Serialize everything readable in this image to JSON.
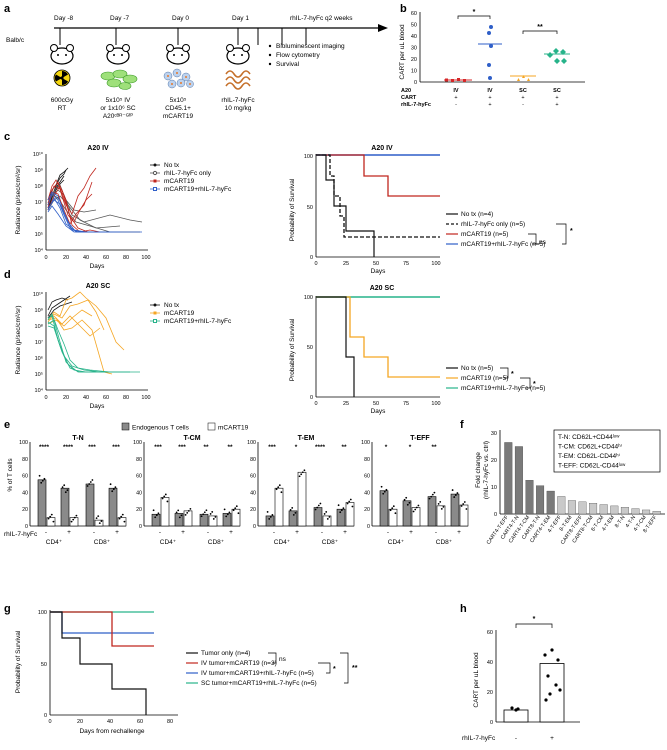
{
  "panels": {
    "a": "a",
    "b": "b",
    "c": "c",
    "d": "d",
    "e": "e",
    "f": "f",
    "g": "g",
    "h": "h"
  },
  "a": {
    "days": [
      "Day -8",
      "Day -7",
      "Day 0",
      "Day 1"
    ],
    "regimen": "rhIL-7-hyFc q2 weeks",
    "mouse": "Balb/c",
    "captions": [
      [
        "600cGy",
        "RT"
      ],
      [
        "5x10⁵ IV",
        "or 1x10⁶ SC",
        "A20ᶜᴮᴿ⁻ᴳᶠᴾ"
      ],
      [
        "5x10⁵",
        "CD45.1+",
        "mCART19"
      ],
      [
        "rhIL-7-hyFc",
        "10 mg/kg"
      ]
    ],
    "readouts": [
      "Bioluminescent imaging",
      "Flow cytometry",
      "Survival"
    ]
  },
  "b": {
    "ylabel": "CART per uL blood",
    "yticks": [
      "0",
      "10",
      "20",
      "30",
      "40",
      "50",
      "60"
    ],
    "row_labels": [
      "A20",
      "CART",
      "rhIL-7-hyFc"
    ],
    "columns": [
      {
        "a20": "IV",
        "cart": "+",
        "il7": "-"
      },
      {
        "a20": "IV",
        "cart": "+",
        "il7": "+"
      },
      {
        "a20": "SC",
        "cart": "+",
        "il7": "-"
      },
      {
        "a20": "SC",
        "cart": "+",
        "il7": "+"
      }
    ],
    "sig": [
      "*",
      "**"
    ],
    "colors": {
      "red": "#d62728",
      "blue": "#2f5fc8",
      "orange": "#f5a623",
      "green": "#27b38a"
    }
  },
  "c": {
    "title_left": "A20 IV",
    "title_right": "A20 IV",
    "ylabel_left": "Radiance (p/sec/cm²/sr)",
    "xlabel": "Days",
    "yticks": [
      "10⁴",
      "10⁵",
      "10⁶",
      "10⁷",
      "10⁸",
      "10⁹",
      "10¹⁰"
    ],
    "xticks": [
      "0",
      "20",
      "40",
      "60",
      "80",
      "100"
    ],
    "legend_left": [
      "No tx",
      "rhIL-7-hyFc only",
      "mCART19",
      "mCART19+rhIL-7-hyFc"
    ],
    "ylabel_right": "Probability of Survival",
    "yticks_right": [
      "0",
      "50",
      "100"
    ],
    "xticks_right": [
      "0",
      "25",
      "50",
      "75",
      "100"
    ],
    "legend_right": [
      "No tx (n=4)",
      "rhIL-7-hyFc only (n=5)",
      "mCART19 (n=5)",
      "mCART19+rhIL-7-hyFc (n=5)"
    ],
    "sig": [
      "*",
      "ns"
    ]
  },
  "d": {
    "title_left": "A20 SC",
    "title_right": "A20 SC",
    "legend_left": [
      "No tx",
      "mCART19",
      "mCART19+rhIL-7-hyFc"
    ],
    "legend_right": [
      "No tx (n=5)",
      "mCART19 (n=5)",
      "mCART19+rhIL-7-hyFc (n=5)"
    ],
    "sig": [
      "*",
      "*"
    ]
  },
  "e": {
    "legend": [
      "Endogenous T cells",
      "mCART19"
    ],
    "ylabel": "% of T cells",
    "yticks": [
      "0",
      "20",
      "40",
      "60",
      "80",
      "100"
    ],
    "groups": [
      "T-N",
      "T-CM",
      "T-EM",
      "T-EFF"
    ],
    "subsets": [
      "CD4⁺",
      "CD8⁺"
    ],
    "signs": [
      "-",
      "+",
      "-",
      "+"
    ],
    "row_label": "rhIL-7-hyFc",
    "stars": {
      "T-N": [
        "****",
        "****",
        "***",
        "***"
      ],
      "T-CM": [
        "***",
        "***",
        "**",
        "**"
      ],
      "T-EM": [
        "***",
        "*",
        "****",
        "**"
      ],
      "T-EFF": [
        "*",
        "*",
        "**"
      ]
    }
  },
  "f": {
    "ylabel": "Fold change\n(rhIL-7-hyFc vs. ctrl)",
    "yticks": [
      "0",
      "10",
      "20",
      "30"
    ],
    "legend": [
      "T-N: CD62L+CD44ˡᵒʷ",
      "T-CM: CD62L+CD44ʰⁱ",
      "T-EM: CD62L-CD44ʰⁱ",
      "T-EFF: CD62L-CD44ˡᵒʷ"
    ],
    "categories": [
      "CART4-T-EFF",
      "CART4-T-N",
      "CART4-T-CM",
      "CART8-T-N",
      "CART4-T-EM",
      "4-T-EFF",
      "8-T-EM",
      "CART8-T-EFF",
      "CART8-T-CM",
      "8-T-CM",
      "4-T-EM",
      "8-T-N",
      "4-T-N",
      "4-T-CM",
      "8-T-EFF"
    ],
    "values": [
      26.5,
      25,
      12.5,
      10.5,
      8.5,
      6.5,
      5,
      4.5,
      4,
      3.5,
      3,
      2.5,
      2,
      1.5,
      1
    ]
  },
  "chart_data": [
    {
      "type": "bar",
      "title": "",
      "ylabel": "Fold change (rhIL-7-hyFc vs. ctrl)",
      "ylim": [
        0,
        30
      ],
      "categories": [
        "CART4-T-EFF",
        "CART4-T-N",
        "CART4-T-CM",
        "CART8-T-N",
        "CART4-T-EM",
        "4-T-EFF",
        "8-T-EM",
        "CART8-T-EFF",
        "CART8-T-CM",
        "8-T-CM",
        "4-T-EM",
        "8-T-N",
        "4-T-N",
        "4-T-CM",
        "8-T-EFF"
      ],
      "values": [
        26.5,
        25,
        12.5,
        10.5,
        8.5,
        6.5,
        5,
        4.5,
        4,
        3.5,
        3,
        2.5,
        2,
        1.5,
        1
      ]
    },
    {
      "type": "bar",
      "ylabel": "CART per uL blood",
      "ylim": [
        0,
        60
      ],
      "categories": [
        "-",
        "+"
      ],
      "values": [
        8,
        39
      ]
    }
  ],
  "g": {
    "ylabel": "Probability of Survival",
    "xlabel": "Days from rechallenge",
    "yticks": [
      "0",
      "50",
      "100"
    ],
    "xticks": [
      "0",
      "20",
      "40",
      "60",
      "80"
    ],
    "legend": [
      "Tumor only (n=4)",
      "IV tumor+mCART19 (n=3)",
      "IV tumor+mCART19+rhIL-7-hyFc (n=5)",
      "SC tumor+mCART19+rhIL-7-hyFc (n=5)"
    ],
    "sig": [
      "ns",
      "*",
      "**"
    ]
  },
  "h": {
    "ylabel": "CART per uL blood",
    "yticks": [
      "0",
      "20",
      "40",
      "60"
    ],
    "xrow_label": "rhIL-7-hyFc",
    "signs": [
      "-",
      "+"
    ],
    "sig": "*"
  }
}
